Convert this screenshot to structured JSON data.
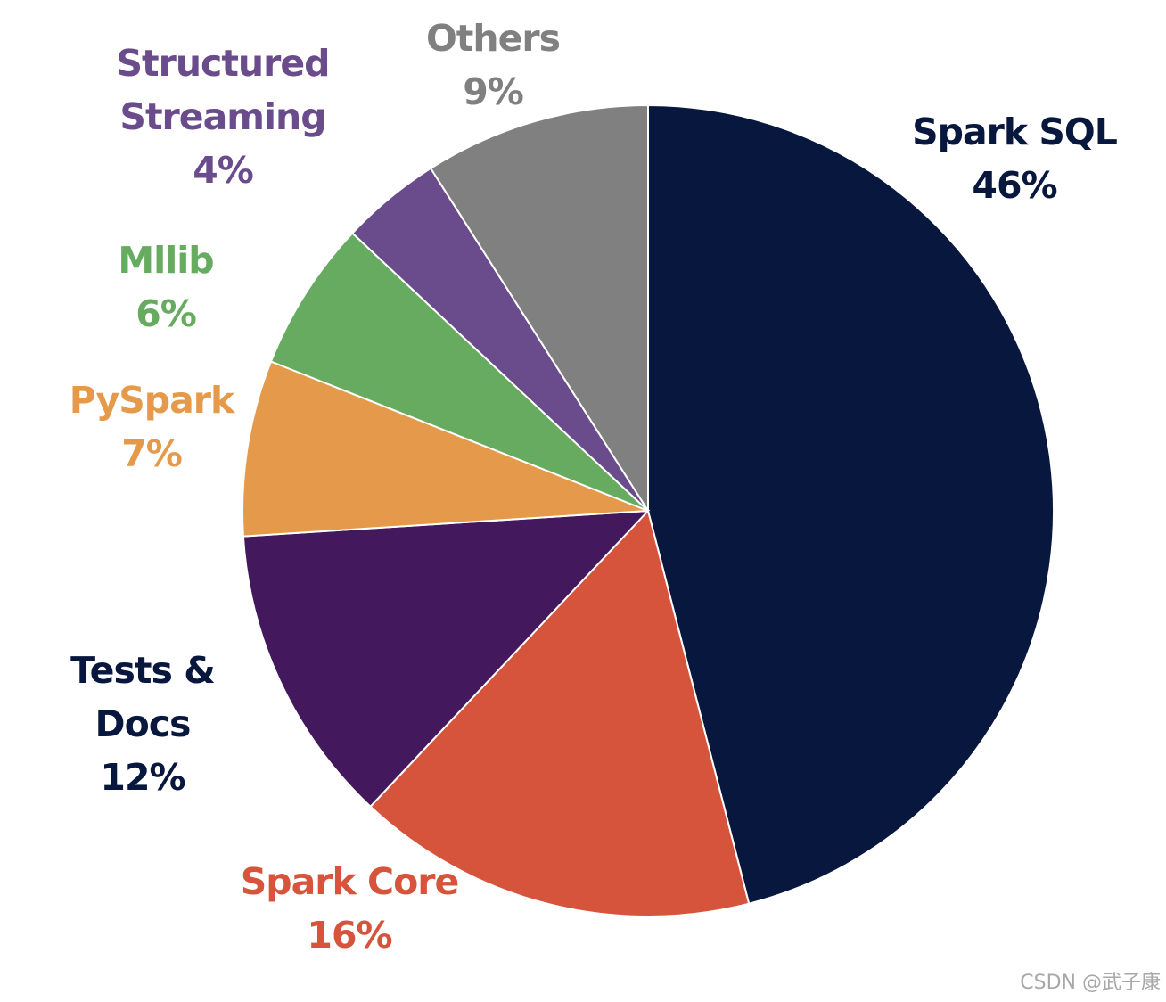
{
  "chart_data": {
    "type": "pie",
    "title": "",
    "slices": [
      {
        "label": "Spark SQL",
        "label_lines": [
          "Spark SQL",
          "46%"
        ],
        "value": 46,
        "color": "#07173d"
      },
      {
        "label": "Spark Core",
        "label_lines": [
          "Spark Core",
          "16%"
        ],
        "value": 16,
        "color": "#d6543c"
      },
      {
        "label": "Tests & Docs",
        "label_lines": [
          "Tests &",
          "Docs",
          "12%"
        ],
        "value": 12,
        "color": "#43185c",
        "label_color": "#07173d"
      },
      {
        "label": "PySpark",
        "label_lines": [
          "PySpark",
          "7%"
        ],
        "value": 7,
        "color": "#e59a4b"
      },
      {
        "label": "Mllib",
        "label_lines": [
          "Mllib",
          "6%"
        ],
        "value": 6,
        "color": "#66ab60"
      },
      {
        "label": "Structured Streaming",
        "label_lines": [
          "Structured",
          "Streaming",
          "4%"
        ],
        "value": 4,
        "color": "#6a4c8c"
      },
      {
        "label": "Others",
        "label_lines": [
          "Others",
          "9%"
        ],
        "value": 9,
        "color": "#808080"
      }
    ],
    "start_angle_deg": 0,
    "direction": "clockwise",
    "legend": "none",
    "labels": "outside"
  },
  "watermark": "CSDN @武子康"
}
